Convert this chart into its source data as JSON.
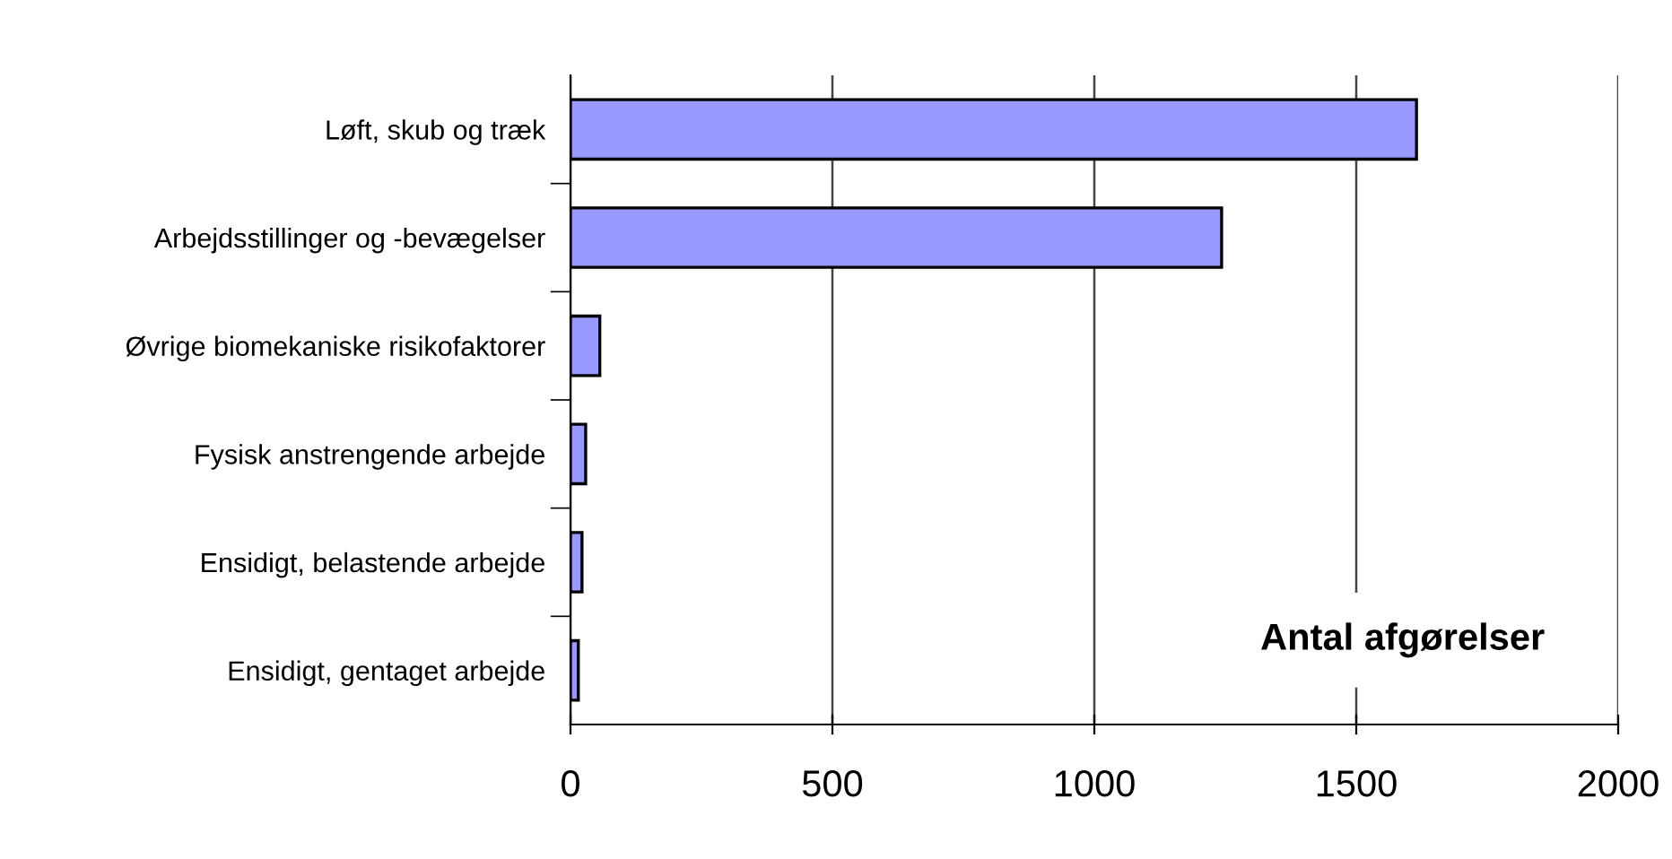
{
  "chart_data": {
    "type": "bar",
    "orientation": "horizontal",
    "categories": [
      "Løft, skub og træk",
      "Arbejdsstillinger og -bevægelser",
      "Øvrige biomekaniske risikofaktorer",
      "Fysisk anstrengende arbejde",
      "Ensidigt, belastende arbejde",
      "Ensidigt, gentaget arbejde"
    ],
    "values": [
      1615,
      1243,
      56,
      29,
      22,
      15
    ],
    "color": "#9999ff",
    "xlim": [
      0,
      2000
    ],
    "xticks": [
      0,
      500,
      1000,
      1500,
      2000
    ],
    "grid": "x",
    "annotations": [
      "Antal afgørelser"
    ]
  }
}
